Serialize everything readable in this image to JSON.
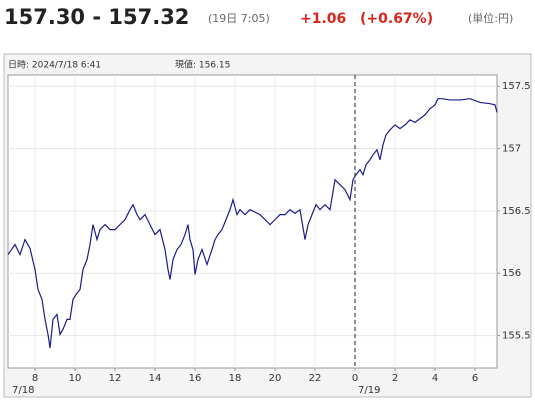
{
  "chart_data": {
    "type": "line",
    "title": "157.30 - 157.32",
    "time_label": "(19日 7:05)",
    "change": "+1.06",
    "change_pct": "(+0.67%)",
    "unit": "(単位:円)",
    "info_datetime": "日時: 2024/7/18  6:41",
    "info_current": "現値: 156.15",
    "date_labels": [
      "7/18",
      "7/19"
    ],
    "color": "#1c1c8a",
    "grid": true,
    "divider_x": 24,
    "xlim": [
      6.65,
      31.1
    ],
    "xticks": [
      8,
      10,
      12,
      14,
      16,
      18,
      20,
      22,
      {
        "value": 24,
        "label": "0"
      },
      {
        "value": 26,
        "label": "2"
      },
      {
        "value": 28,
        "label": "4"
      },
      {
        "value": 30,
        "label": "6"
      }
    ],
    "ylim": [
      155.24,
      157.59
    ],
    "yticks": [
      155.5,
      156,
      156.5,
      157,
      157.5
    ],
    "x": [
      6.65,
      7.0,
      7.25,
      7.5,
      7.75,
      8,
      8.15,
      8.35,
      8.5,
      8.65,
      8.75,
      8.9,
      9.1,
      9.25,
      9.4,
      9.6,
      9.75,
      9.9,
      10.05,
      10.25,
      10.4,
      10.6,
      10.75,
      10.9,
      11.1,
      11.25,
      11.5,
      11.75,
      12,
      12.25,
      12.5,
      12.75,
      12.9,
      13.1,
      13.25,
      13.5,
      13.75,
      14,
      14.25,
      14.5,
      14.65,
      14.75,
      14.9,
      15.1,
      15.3,
      15.5,
      15.65,
      15.75,
      15.9,
      16,
      16.15,
      16.35,
      16.6,
      16.85,
      17,
      17.15,
      17.35,
      17.55,
      17.75,
      17.9,
      18.1,
      18.25,
      18.5,
      18.75,
      19,
      19.25,
      19.5,
      19.75,
      20,
      20.25,
      20.5,
      20.75,
      21,
      21.25,
      21.5,
      21.65,
      21.85,
      22.05,
      22.25,
      22.5,
      22.75,
      23,
      23.25,
      23.5,
      23.75,
      23.9,
      24.05,
      24.25,
      24.4,
      24.55,
      24.75,
      24.9,
      25.1,
      25.25,
      25.4,
      25.55,
      25.75,
      26,
      26.25,
      26.5,
      26.75,
      27,
      27.25,
      27.5,
      27.75,
      28,
      28.15,
      28.35,
      28.75,
      29.25,
      29.75,
      30.25,
      30.75,
      31,
      31.1
    ],
    "values": [
      156.15,
      156.23,
      156.15,
      156.27,
      156.2,
      156.03,
      155.87,
      155.79,
      155.63,
      155.51,
      155.4,
      155.63,
      155.67,
      155.51,
      155.55,
      155.63,
      155.63,
      155.79,
      155.83,
      155.87,
      156.03,
      156.11,
      156.23,
      156.39,
      156.27,
      156.35,
      156.39,
      156.35,
      156.35,
      156.39,
      156.43,
      156.51,
      156.55,
      156.47,
      156.43,
      156.47,
      156.39,
      156.31,
      156.35,
      156.19,
      156.03,
      155.95,
      156.11,
      156.19,
      156.23,
      156.31,
      156.39,
      156.27,
      156.19,
      155.99,
      156.11,
      156.19,
      156.07,
      156.19,
      156.27,
      156.31,
      156.35,
      156.43,
      156.51,
      156.59,
      156.47,
      156.51,
      156.47,
      156.51,
      156.49,
      156.47,
      156.43,
      156.39,
      156.43,
      156.47,
      156.47,
      156.51,
      156.48,
      156.51,
      156.27,
      156.39,
      156.47,
      156.55,
      156.51,
      156.55,
      156.51,
      156.75,
      156.71,
      156.67,
      156.59,
      156.75,
      156.79,
      156.83,
      156.79,
      156.87,
      156.91,
      156.95,
      156.99,
      156.91,
      157.03,
      157.11,
      157.15,
      157.19,
      157.16,
      157.19,
      157.23,
      157.21,
      157.24,
      157.27,
      157.32,
      157.35,
      157.4,
      157.4,
      157.39,
      157.39,
      157.4,
      157.37,
      157.36,
      157.35,
      157.29
    ]
  }
}
